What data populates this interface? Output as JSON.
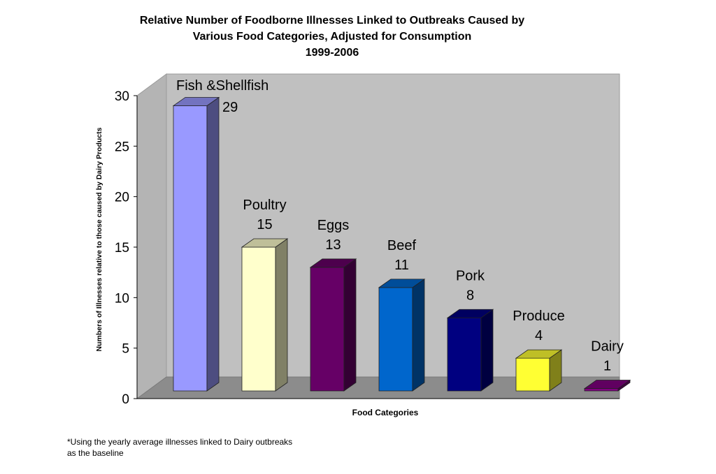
{
  "chart_data": {
    "type": "bar",
    "title": [
      "Relative Number of Foodborne Illnesses Linked to Outbreaks Caused by",
      "Various Food Categories, Adjusted for Consumption",
      "1999-2006"
    ],
    "xlabel": "Food Categories",
    "ylabel": "Numbers of Illnesses relative to those caused by Dairy Products",
    "ylim": [
      0,
      30
    ],
    "yticks": [
      "0",
      "5",
      "10",
      "15",
      "20",
      "25",
      "30"
    ],
    "categories": [
      "Fish &Shellfish",
      "Poultry",
      "Eggs",
      "Beef",
      "Pork",
      "Produce",
      "Dairy"
    ],
    "values": [
      29,
      15,
      13,
      11,
      8,
      4,
      1
    ],
    "value_labels": [
      "29",
      "15",
      "13",
      "11",
      "8",
      "4",
      "1"
    ],
    "colors": [
      "#9999ff",
      "#ffffcc",
      "#660066",
      "#0066cc",
      "#000080",
      "#ffff33",
      "#800080"
    ],
    "grid": false,
    "style": "3d"
  },
  "footnote": "*Using the yearly average illnesses linked to Dairy outbreaks as the baseline"
}
